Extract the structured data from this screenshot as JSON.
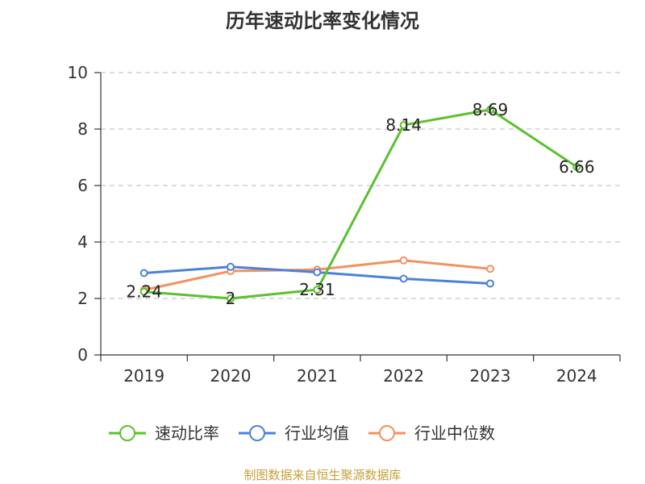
{
  "title": "历年速动比率变化情况",
  "source": "制图数据来自恒生聚源数据库",
  "chart_data": {
    "type": "line",
    "title": "历年速动比率变化情况",
    "categories": [
      "2019",
      "2020",
      "2021",
      "2022",
      "2023",
      "2024"
    ],
    "y_ticks": [
      "0",
      "2",
      "4",
      "6",
      "8",
      "10"
    ],
    "ylim": [
      0,
      10
    ],
    "grid": true,
    "legend_position": "bottom",
    "series": [
      {
        "name": "速动比率",
        "color": "#5cc02e",
        "values": [
          2.24,
          2,
          2.31,
          8.14,
          8.69,
          6.66
        ],
        "data_labels": [
          "2.24",
          "2",
          "2.31",
          "8.14",
          "8.69",
          "6.66"
        ]
      },
      {
        "name": "行业均值",
        "color": "#4b82d9",
        "values": [
          2.9,
          3.12,
          2.93,
          2.7,
          2.53,
          null
        ]
      },
      {
        "name": "行业中位数",
        "color": "#f39160",
        "values": [
          2.3,
          2.97,
          3.02,
          3.35,
          3.05,
          null
        ]
      }
    ]
  }
}
